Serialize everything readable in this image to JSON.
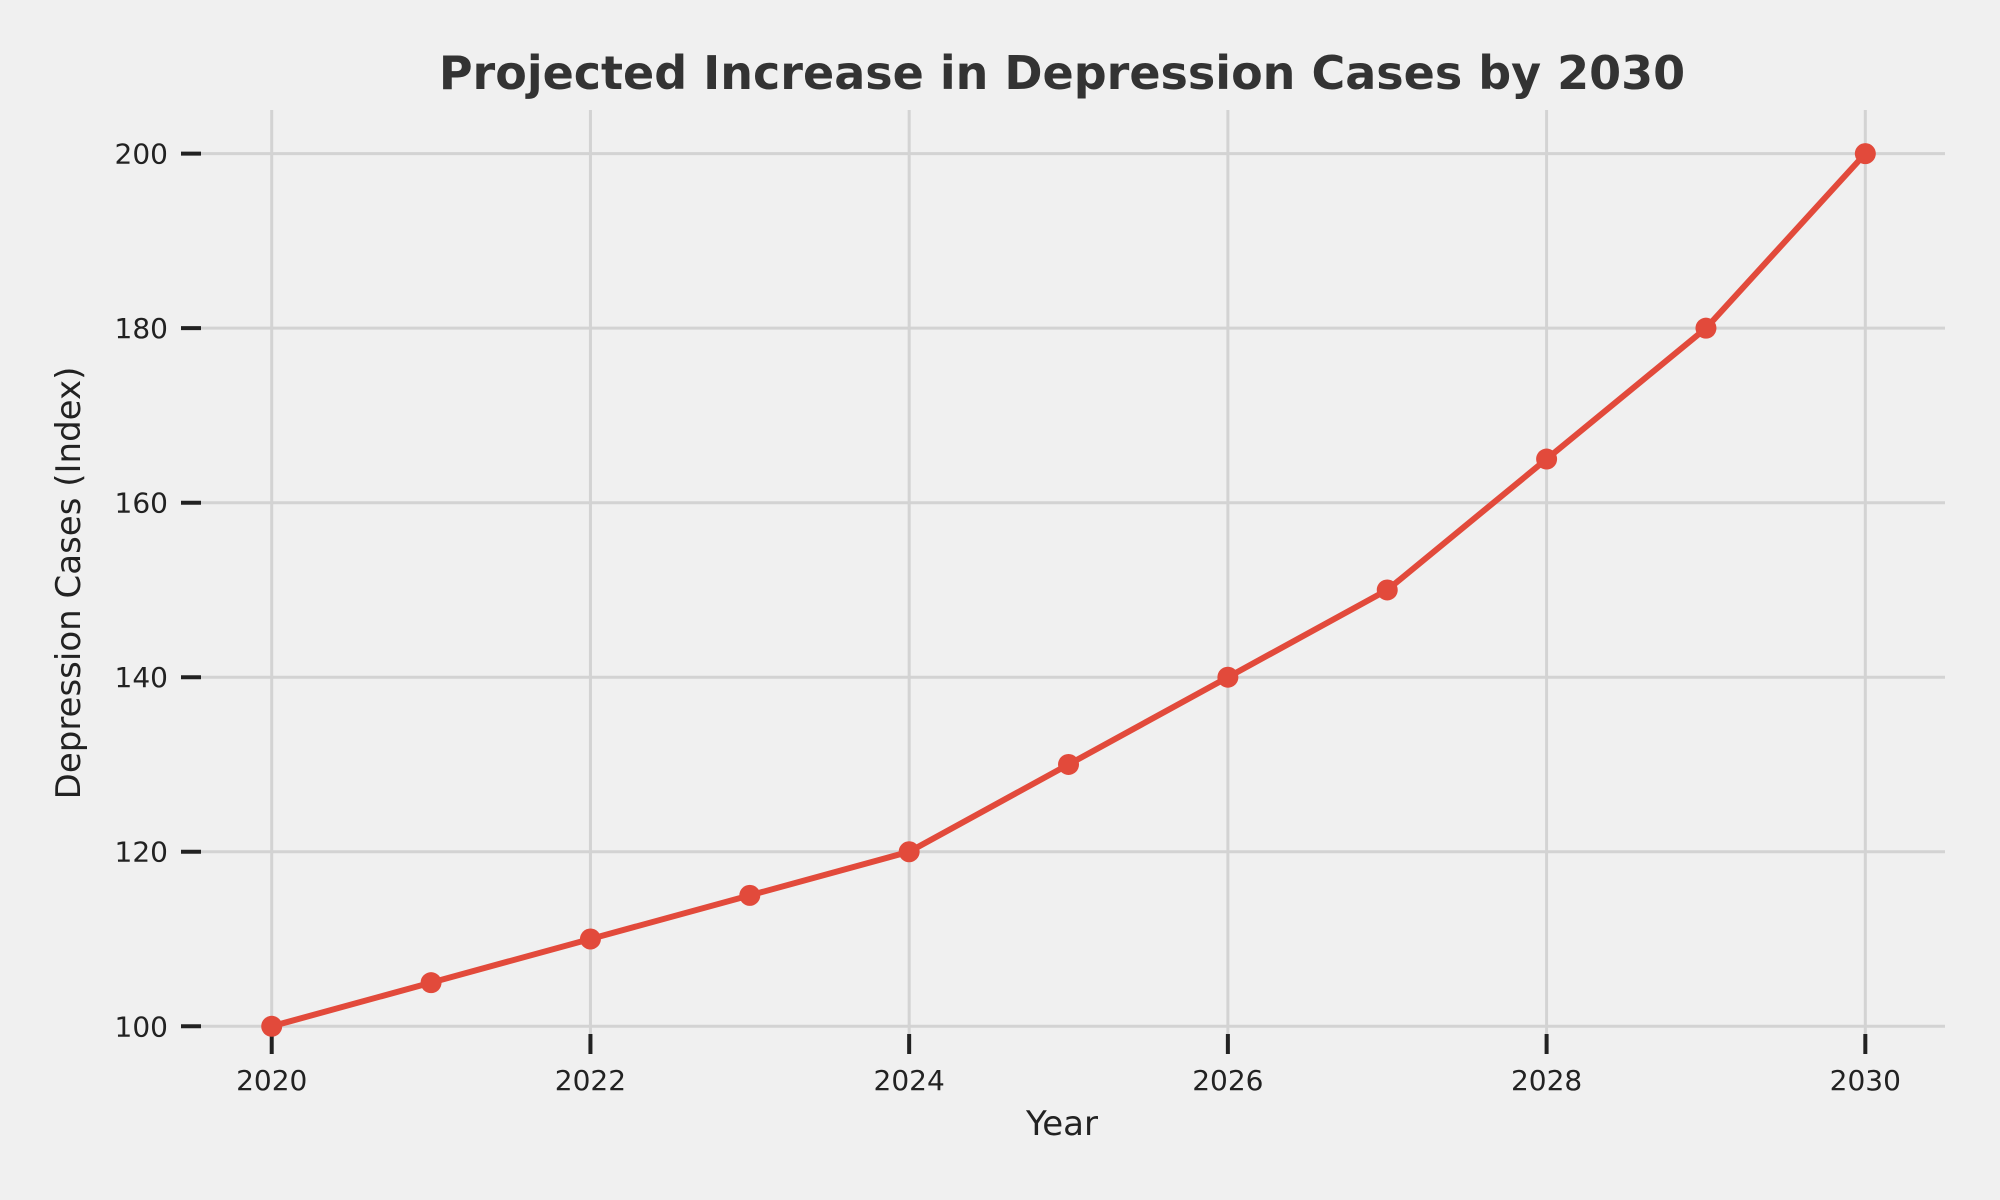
{
  "chart_data": {
    "type": "line",
    "title": "Projected Increase in Depression Cases by 2030",
    "xlabel": "Year",
    "ylabel": "Depression Cases (Index)",
    "x": [
      2020,
      2021,
      2022,
      2023,
      2024,
      2025,
      2026,
      2027,
      2028,
      2029,
      2030
    ],
    "series": [
      {
        "values": [
          100,
          105,
          110,
          115,
          120,
          130,
          140,
          150,
          165,
          180,
          200
        ],
        "color": "#e24a3b",
        "marker": "circle"
      }
    ],
    "xticks": [
      2020,
      2022,
      2024,
      2026,
      2028,
      2030
    ],
    "yticks": [
      100,
      120,
      140,
      160,
      180,
      200
    ],
    "xlim": [
      2019.55,
      2030.5
    ],
    "ylim": [
      99,
      205
    ],
    "grid": true,
    "background": "#f0f0f0",
    "grid_color": "#d3d3d3"
  }
}
